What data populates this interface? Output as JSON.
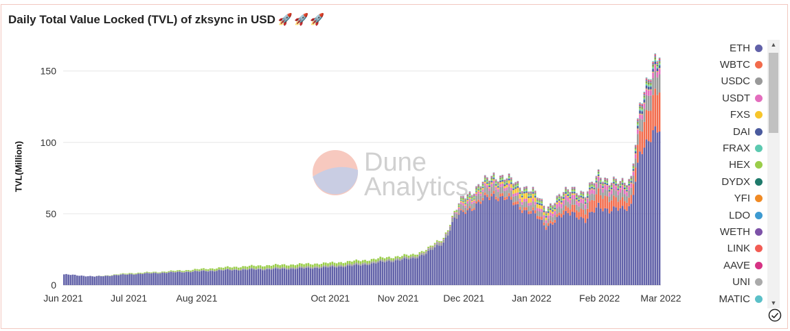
{
  "title": "Daily Total Value Locked (TVL) of zksync in USD",
  "title_emoji": "🚀🚀🚀",
  "watermark": {
    "line1": "Dune",
    "line2": "Analytics"
  },
  "chart_data": {
    "type": "bar",
    "stacked": true,
    "title": "Daily Total Value Locked (TVL) of zksync in USD",
    "xlabel": "",
    "ylabel": "TVL(Million)",
    "ylim": [
      0,
      170
    ],
    "yticks": [
      0,
      50,
      100,
      150
    ],
    "xticks": [
      {
        "date": "2021-06-01",
        "label": "Jun 2021"
      },
      {
        "date": "2021-07-01",
        "label": "Jul 2021"
      },
      {
        "date": "2021-08-01",
        "label": "Aug 2021"
      },
      {
        "date": "2021-10-01",
        "label": "Oct 2021"
      },
      {
        "date": "2021-11-01",
        "label": "Nov 2021"
      },
      {
        "date": "2021-12-01",
        "label": "Dec 2021"
      },
      {
        "date": "2022-01-01",
        "label": "Jan 2022"
      },
      {
        "date": "2022-02-01",
        "label": "Feb 2022"
      },
      {
        "date": "2022-03-01",
        "label": "Mar 2022"
      }
    ],
    "grid": true,
    "legend_position": "right",
    "x_interval": "daily",
    "x_start": "2021-06-01",
    "x_end": "2022-03-01",
    "sampled_dates": [
      "2021-06-01",
      "2021-06-15",
      "2021-07-01",
      "2021-07-15",
      "2021-08-01",
      "2021-08-15",
      "2021-09-01",
      "2021-09-15",
      "2021-10-01",
      "2021-10-15",
      "2021-11-01",
      "2021-11-08",
      "2021-11-15",
      "2021-11-22",
      "2021-11-27",
      "2021-12-01",
      "2021-12-08",
      "2021-12-15",
      "2021-12-20",
      "2021-12-25",
      "2021-12-30",
      "2022-01-02",
      "2022-01-08",
      "2022-01-14",
      "2022-01-20",
      "2022-01-26",
      "2022-02-01",
      "2022-02-06",
      "2022-02-11",
      "2022-02-16",
      "2022-02-20",
      "2022-02-23",
      "2022-02-26",
      "2022-03-01"
    ],
    "series": [
      {
        "name": "ETH",
        "color": "#6161a8",
        "values": [
          7.5,
          6,
          7.5,
          8.5,
          9.5,
          10.5,
          11,
          11.5,
          12.5,
          14,
          17.5,
          18.5,
          23,
          30,
          46,
          51,
          57,
          63,
          61,
          56,
          52,
          50,
          41,
          47,
          52,
          44,
          57,
          51,
          54,
          56,
          90,
          99,
          110,
          110
        ]
      },
      {
        "name": "WBTC",
        "color": "#f26b4c",
        "values": [
          0,
          0,
          0,
          0,
          0,
          0,
          0,
          0,
          0,
          0,
          0,
          0,
          0,
          0,
          0,
          1,
          1.5,
          2,
          2,
          2,
          2,
          2,
          2,
          2,
          5,
          6,
          10,
          8,
          6,
          6,
          14,
          20,
          25,
          28
        ]
      },
      {
        "name": "USDC",
        "color": "#999999",
        "values": [
          0,
          0,
          0.3,
          0.3,
          0.5,
          0.5,
          0.8,
          1,
          1,
          1.2,
          1.2,
          1.2,
          1.5,
          2,
          3,
          3.5,
          4,
          5,
          4.5,
          4,
          4,
          4,
          3,
          4,
          4,
          4,
          5,
          4,
          5,
          5,
          8,
          10,
          12,
          13
        ]
      },
      {
        "name": "USDT",
        "color": "#e36dbd",
        "values": [
          0,
          0,
          0,
          0,
          0,
          0,
          0,
          0,
          0,
          0,
          0,
          0,
          0.2,
          0.3,
          0.5,
          1.5,
          1.5,
          2,
          2,
          2,
          2,
          2,
          2,
          3,
          3,
          3,
          3,
          3,
          3,
          3,
          3,
          4,
          4,
          4
        ]
      },
      {
        "name": "FXS",
        "color": "#f7c52b",
        "values": [
          0,
          0,
          0,
          0,
          0,
          0,
          0,
          0,
          0,
          0,
          0,
          0,
          0,
          0,
          0,
          1,
          1,
          1,
          1.5,
          3,
          4,
          3,
          2,
          1,
          1,
          0.5,
          0.5,
          0.5,
          0.5,
          0.5,
          0.5,
          0.5,
          0.5,
          0.5
        ]
      },
      {
        "name": "DAI",
        "color": "#4a5a9e",
        "values": [
          0,
          0,
          0,
          0,
          0,
          0,
          0,
          0,
          0,
          0,
          0,
          0,
          0,
          0,
          0,
          0.5,
          0.5,
          1,
          1,
          1,
          1,
          1,
          1,
          1,
          1,
          1,
          1,
          1,
          1,
          1,
          2,
          2,
          2,
          2
        ]
      },
      {
        "name": "FRAX",
        "color": "#5cc9b0",
        "values": [
          0,
          0,
          0,
          0,
          0,
          0,
          0,
          0,
          0,
          0,
          0,
          0,
          0,
          0,
          0,
          0.5,
          0.5,
          0.5,
          0.5,
          0.5,
          0.5,
          0.5,
          0.5,
          0.5,
          0.5,
          0.5,
          0.5,
          0.5,
          0.5,
          0.5,
          1,
          1,
          1,
          1
        ]
      },
      {
        "name": "HEX",
        "color": "#9acd4a",
        "values": [
          0,
          0,
          0.5,
          0.5,
          1,
          1.5,
          2,
          2,
          2,
          2,
          1.5,
          1.5,
          1,
          1,
          1,
          1,
          1,
          1,
          1,
          1,
          1,
          1,
          1,
          1,
          1,
          1,
          1,
          1,
          1,
          1,
          1,
          1,
          1,
          1
        ]
      },
      {
        "name": "DYDX",
        "color": "#1f7a6b",
        "values": [
          0,
          0,
          0,
          0,
          0,
          0,
          0,
          0,
          0,
          0,
          0,
          0,
          0,
          0,
          0,
          0.3,
          0.3,
          0.3,
          0.3,
          0.3,
          0.3,
          0.3,
          0.3,
          0.3,
          0.3,
          0.3,
          0.3,
          0.3,
          0.3,
          0.3,
          0.5,
          0.5,
          0.5,
          0.5
        ]
      },
      {
        "name": "YFI",
        "color": "#f08a24",
        "values": [
          0,
          0,
          0,
          0,
          0,
          0,
          0,
          0,
          0,
          0,
          0,
          0,
          0,
          0,
          0,
          0.3,
          0.3,
          0.3,
          0.3,
          0.3,
          0.3,
          0.3,
          0.3,
          0.3,
          0.3,
          0.3,
          0.3,
          0.3,
          0.3,
          0.3,
          0.5,
          0.5,
          0.5,
          0.5
        ]
      },
      {
        "name": "LDO",
        "color": "#3d9ad1",
        "values": [
          0,
          0,
          0,
          0,
          0,
          0,
          0,
          0,
          0,
          0,
          0,
          0,
          0,
          0,
          0,
          0.3,
          0.3,
          0.3,
          0.3,
          0.3,
          0.3,
          0.3,
          0.3,
          0.3,
          0.3,
          0.3,
          0.3,
          0.3,
          0.3,
          0.3,
          0.5,
          0.5,
          0.5,
          0.5
        ]
      },
      {
        "name": "WETH",
        "color": "#7d52a8",
        "values": [
          0,
          0,
          0,
          0,
          0,
          0,
          0,
          0,
          0,
          0,
          0,
          0,
          0,
          0,
          0,
          0.3,
          0.3,
          0.3,
          0.3,
          0.3,
          0.3,
          0.3,
          0.3,
          0.3,
          0.3,
          0.3,
          0.3,
          0.3,
          0.3,
          0.3,
          0.5,
          0.5,
          0.5,
          0.5
        ]
      },
      {
        "name": "LINK",
        "color": "#f25c54",
        "values": [
          0,
          0,
          0,
          0,
          0,
          0,
          0,
          0,
          0,
          0,
          0,
          0,
          0,
          0,
          0,
          0.3,
          0.3,
          0.3,
          0.3,
          0.3,
          0.3,
          0.3,
          0.3,
          0.3,
          0.3,
          0.3,
          0.3,
          0.3,
          0.3,
          0.3,
          0.5,
          0.5,
          0.5,
          0.5
        ]
      },
      {
        "name": "AAVE",
        "color": "#d63384",
        "values": [
          0,
          0,
          0,
          0,
          0,
          0,
          0,
          0,
          0,
          0,
          0,
          0,
          0,
          0,
          0,
          0.2,
          0.2,
          0.2,
          0.2,
          0.2,
          0.2,
          0.2,
          0.2,
          0.2,
          0.2,
          0.2,
          0.2,
          0.2,
          0.2,
          0.2,
          0.3,
          0.3,
          0.3,
          0.3
        ]
      },
      {
        "name": "UNI",
        "color": "#aaaaaa",
        "values": [
          0,
          0,
          0,
          0,
          0,
          0,
          0,
          0,
          0,
          0,
          0,
          0,
          0,
          0,
          0,
          0.3,
          0.3,
          0.3,
          0.3,
          0.3,
          0.3,
          0.3,
          0.3,
          0.3,
          0.3,
          0.3,
          0.3,
          0.3,
          0.3,
          0.3,
          0.5,
          0.5,
          0.5,
          0.5
        ]
      },
      {
        "name": "MATIC",
        "color": "#5bc0c8",
        "values": [
          0,
          0,
          0,
          0,
          0,
          0,
          0,
          0,
          0,
          0,
          0,
          0,
          0,
          0,
          0,
          0.2,
          0.2,
          0.2,
          0.2,
          0.2,
          0.2,
          0.2,
          0.2,
          0.2,
          0.2,
          0.2,
          0.2,
          0.2,
          0.2,
          0.2,
          0.3,
          0.3,
          0.3,
          0.3
        ]
      }
    ]
  }
}
